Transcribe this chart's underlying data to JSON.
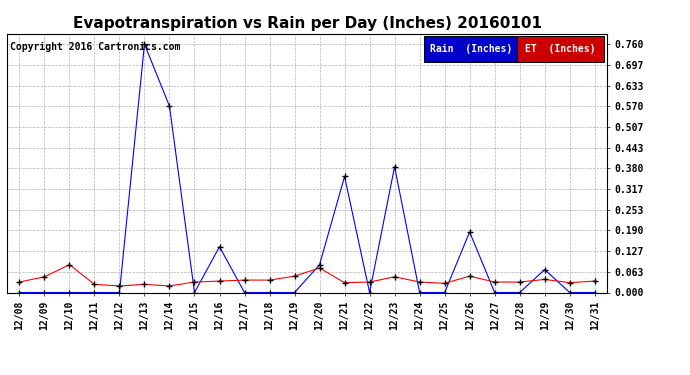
{
  "title": "Evapotranspiration vs Rain per Day (Inches) 20160101",
  "copyright": "Copyright 2016 Cartronics.com",
  "x_labels": [
    "12/08",
    "12/09",
    "12/10",
    "12/11",
    "12/12",
    "12/13",
    "12/14",
    "12/15",
    "12/16",
    "12/17",
    "12/18",
    "12/19",
    "12/20",
    "12/21",
    "12/22",
    "12/23",
    "12/24",
    "12/25",
    "12/26",
    "12/27",
    "12/28",
    "12/29",
    "12/30",
    "12/31"
  ],
  "rain_values": [
    0.0,
    0.0,
    0.0,
    0.0,
    0.0,
    0.76,
    0.57,
    0.0,
    0.14,
    0.0,
    0.0,
    0.0,
    0.085,
    0.355,
    0.0,
    0.385,
    0.0,
    0.0,
    0.185,
    0.0,
    0.0,
    0.07,
    0.0,
    0.0
  ],
  "et_values": [
    0.032,
    0.048,
    0.085,
    0.025,
    0.02,
    0.025,
    0.02,
    0.032,
    0.035,
    0.038,
    0.038,
    0.05,
    0.075,
    0.03,
    0.032,
    0.048,
    0.032,
    0.028,
    0.05,
    0.032,
    0.032,
    0.04,
    0.03,
    0.035
  ],
  "rain_color": "#0000ff",
  "et_color": "#ff0000",
  "bg_color": "#ffffff",
  "grid_color": "#b0b0b0",
  "ylim": [
    0.0,
    0.7917
  ],
  "yticks": [
    0.0,
    0.063,
    0.127,
    0.19,
    0.253,
    0.317,
    0.38,
    0.443,
    0.507,
    0.57,
    0.633,
    0.697,
    0.76
  ],
  "legend_rain_bg": "#0000cc",
  "legend_et_bg": "#cc0000",
  "title_fontsize": 11,
  "tick_fontsize": 7,
  "copyright_fontsize": 7,
  "legend_fontsize": 7
}
